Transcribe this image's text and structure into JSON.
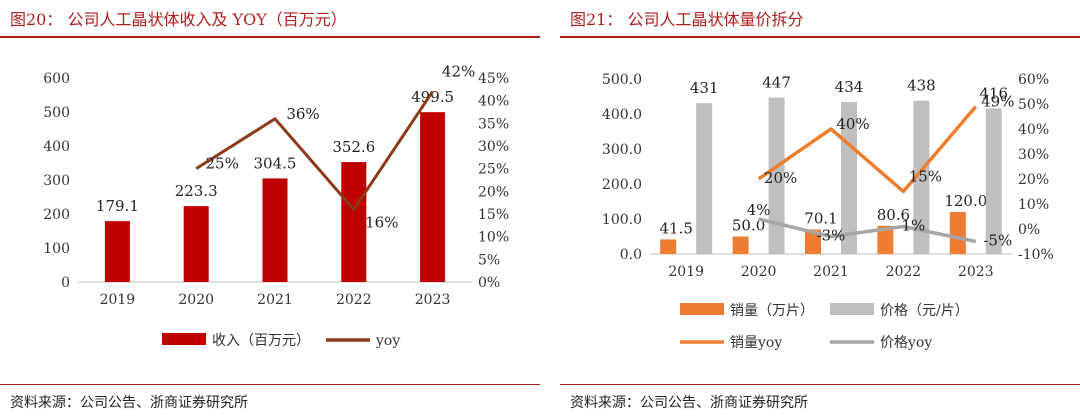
{
  "left": {
    "title": "图20：  公司人工晶状体收入及 YOY（百万元）",
    "source": "资料来源：公司公告、浙商证券研究所",
    "chart_data": {
      "type": "bar+line",
      "categories": [
        "2019",
        "2020",
        "2021",
        "2022",
        "2023"
      ],
      "series": [
        {
          "name": "收入（百万元）",
          "type": "bar",
          "axis": "left",
          "values": [
            179.1,
            223.3,
            304.5,
            352.6,
            499.5
          ],
          "color": "#c00000",
          "labels": [
            "179.1",
            "223.3",
            "304.5",
            "352.6",
            "499.5"
          ]
        },
        {
          "name": "yoy",
          "type": "line",
          "axis": "right",
          "values": [
            null,
            25,
            36,
            16,
            42
          ],
          "color": "#8b3a1a",
          "labels": [
            "",
            "25%",
            "36%",
            "16%",
            "42%"
          ]
        }
      ],
      "left_axis": {
        "min": 0,
        "max": 600,
        "ticks": [
          "0",
          "100",
          "200",
          "300",
          "400",
          "500",
          "600"
        ]
      },
      "right_axis": {
        "min": 0,
        "max": 45,
        "ticks": [
          "0%",
          "5%",
          "10%",
          "15%",
          "20%",
          "25%",
          "30%",
          "35%",
          "40%",
          "45%"
        ]
      },
      "legend": [
        "收入（百万元）",
        "yoy"
      ],
      "legend_position": "bottom"
    }
  },
  "right": {
    "title": "图21：  公司人工晶状体量价拆分",
    "source": "资料来源：公司公告、浙商证券研究所",
    "chart_data": {
      "type": "bar+line",
      "categories": [
        "2019",
        "2020",
        "2021",
        "2022",
        "2023"
      ],
      "series": [
        {
          "name": "销量（万片）",
          "type": "bar",
          "axis": "left",
          "values": [
            41.5,
            50.0,
            70.1,
            80.6,
            120.0
          ],
          "color": "#ed7d31",
          "labels": [
            "41.5",
            "50.0",
            "70.1",
            "80.6",
            "120.0"
          ]
        },
        {
          "name": "价格（元/片）",
          "type": "bar",
          "axis": "left",
          "values": [
            431,
            447,
            434,
            438,
            416
          ],
          "color": "#bfbfbf",
          "labels": [
            "431",
            "447",
            "434",
            "438",
            "416"
          ]
        },
        {
          "name": "销量yoy",
          "type": "line",
          "axis": "right",
          "values": [
            null,
            20,
            40,
            15,
            49
          ],
          "color": "#ed7d31",
          "labels": [
            "",
            "20%",
            "40%",
            "15%",
            "49%"
          ]
        },
        {
          "name": "价格yoy",
          "type": "line",
          "axis": "right",
          "values": [
            null,
            4,
            -3,
            1,
            -5
          ],
          "color": "#a6a6a6",
          "labels": [
            "",
            "4%",
            "-3%",
            "1%",
            "-5%"
          ]
        }
      ],
      "left_axis": {
        "min": 0,
        "max": 500,
        "ticks": [
          "0.0",
          "100.0",
          "200.0",
          "300.0",
          "400.0",
          "500.0"
        ]
      },
      "right_axis": {
        "min": -10,
        "max": 60,
        "ticks": [
          "-10%",
          "0%",
          "10%",
          "20%",
          "30%",
          "40%",
          "50%",
          "60%"
        ]
      },
      "legend": [
        "销量（万片）",
        "价格（元/片）",
        "销量yoy",
        "价格yoy"
      ],
      "legend_position": "bottom"
    }
  }
}
